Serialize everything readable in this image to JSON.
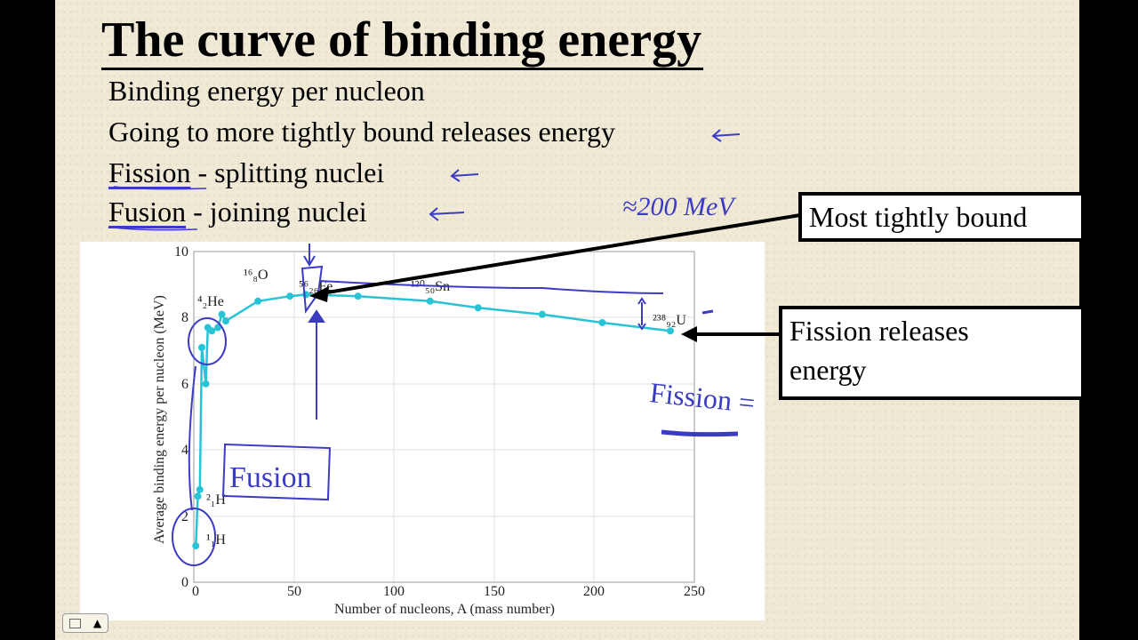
{
  "slide": {
    "title": "The curve of binding energy",
    "bullets": [
      {
        "lead": "Binding energy per nucleon",
        "rest": ""
      },
      {
        "lead": "Going to more tightly bound releases energy",
        "rest": ""
      },
      {
        "lead": "Fission",
        "rest": " - splitting nuclei"
      },
      {
        "lead": "Fusion",
        "rest": " - joining nuclei"
      }
    ],
    "callouts": {
      "most_tightly_bound": "Most tightly bound",
      "fission_releases_line1": "Fission releases",
      "fission_releases_line2": "energy"
    },
    "handwriting": {
      "approx_energy": "≈200 MeV",
      "fusion_box": "Fusion",
      "fission_note": "Fission ="
    },
    "controls": {
      "slide_menu_icon": "slide-menu-icon",
      "up_arrow": "▲"
    },
    "colors": {
      "background": "#efe9d6",
      "curve": "#29c3d6",
      "ink": "#3b3bc4",
      "callout_border": "#000000"
    }
  },
  "chart_data": {
    "type": "line",
    "title": "",
    "xlabel": "Number of nucleons, A (mass number)",
    "ylabel": "Average binding energy per nucleon (MeV)",
    "xlim": [
      0,
      250
    ],
    "ylim": [
      0,
      10
    ],
    "xticks": [
      0,
      50,
      100,
      150,
      200,
      250
    ],
    "yticks": [
      0,
      2,
      4,
      6,
      8,
      10
    ],
    "grid": true,
    "series": [
      {
        "name": "Binding energy per nucleon",
        "x": [
          1,
          2,
          3,
          4,
          6,
          7,
          9,
          12,
          14,
          16,
          32,
          48,
          56,
          82,
          118,
          142,
          174,
          204,
          238
        ],
        "values": [
          1.1,
          2.6,
          2.8,
          7.1,
          6.0,
          7.7,
          7.6,
          7.7,
          8.1,
          7.9,
          8.5,
          8.65,
          8.7,
          8.65,
          8.5,
          8.3,
          8.1,
          7.85,
          7.6
        ]
      }
    ],
    "annotations": [
      {
        "label": "1/1 H",
        "x": 1,
        "y": 1.1
      },
      {
        "label": "2/1 H",
        "x": 2,
        "y": 2.6
      },
      {
        "label": "4/2 He",
        "x": 4,
        "y": 8.5
      },
      {
        "label": "16/8 O",
        "x": 16,
        "y": 9.2
      },
      {
        "label": "56/26 Fe",
        "x": 56,
        "y": 8.9
      },
      {
        "label": "120/50 Sn",
        "x": 120,
        "y": 8.9
      },
      {
        "label": "238/92 U",
        "x": 238,
        "y": 7.9
      }
    ]
  }
}
